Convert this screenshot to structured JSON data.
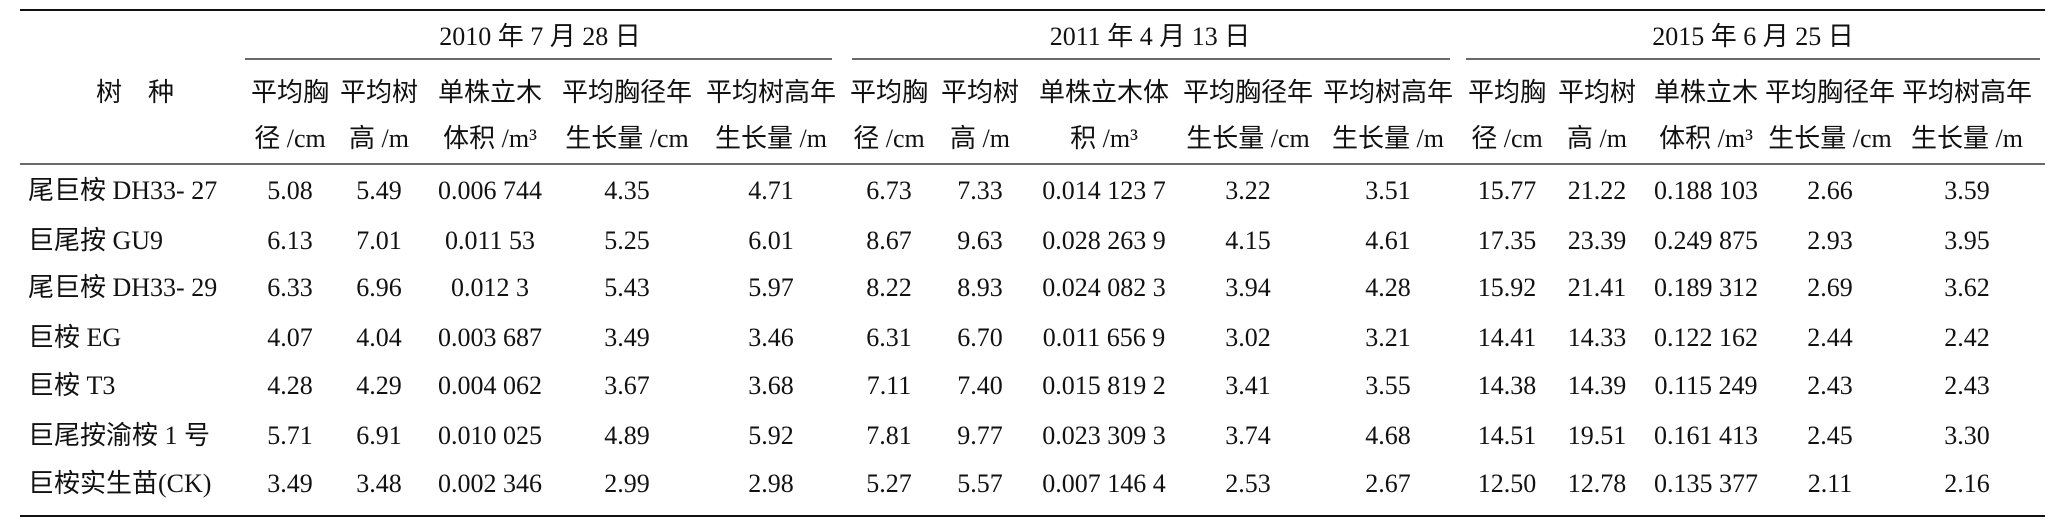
{
  "table": {
    "species_header": "树　种",
    "groups": [
      {
        "title": "2010 年 7 月 28 日",
        "columns": [
          [
            "平均胸",
            "径 /cm"
          ],
          [
            "平均树",
            "高 /m"
          ],
          [
            "单株立木",
            "体积 /m³"
          ],
          [
            "平均胸径年",
            "生长量 /cm"
          ],
          [
            "平均树高年",
            "生长量 /m"
          ]
        ]
      },
      {
        "title": "2011 年 4 月 13 日",
        "columns": [
          [
            "平均胸",
            "径 /cm"
          ],
          [
            "平均树",
            "高 /m"
          ],
          [
            "单株立木体",
            "积 /m³"
          ],
          [
            "平均胸径年",
            "生长量 /cm"
          ],
          [
            "平均树高年",
            "生长量 /m"
          ]
        ]
      },
      {
        "title": "2015 年 6 月 25 日",
        "columns": [
          [
            "平均胸",
            "径 /cm"
          ],
          [
            "平均树",
            "高 /m"
          ],
          [
            "单株立木",
            "体积 /m³"
          ],
          [
            "平均胸径年",
            "生长量 /cm"
          ],
          [
            "平均树高年",
            "生长量 /m"
          ]
        ]
      }
    ],
    "rows": [
      {
        "species": "尾巨桉 DH33- 27",
        "cells": [
          "5.08",
          "5.49",
          "0.006 744",
          "4.35",
          "4.71",
          "6.73",
          "7.33",
          "0.014 123 7",
          "3.22",
          "3.51",
          "15.77",
          "21.22",
          "0.188 103",
          "2.66",
          "3.59"
        ]
      },
      {
        "species": "巨尾按 GU9",
        "cells": [
          "6.13",
          "7.01",
          "0.011 53",
          "5.25",
          "6.01",
          "8.67",
          "9.63",
          "0.028 263 9",
          "4.15",
          "4.61",
          "17.35",
          "23.39",
          "0.249 875",
          "2.93",
          "3.95"
        ]
      },
      {
        "species": "尾巨桉 DH33- 29",
        "cells": [
          "6.33",
          "6.96",
          "0.012 3",
          "5.43",
          "5.97",
          "8.22",
          "8.93",
          "0.024 082 3",
          "3.94",
          "4.28",
          "15.92",
          "21.41",
          "0.189 312",
          "2.69",
          "3.62"
        ]
      },
      {
        "species": "巨桉 EG",
        "cells": [
          "4.07",
          "4.04",
          "0.003 687",
          "3.49",
          "3.46",
          "6.31",
          "6.70",
          "0.011 656 9",
          "3.02",
          "3.21",
          "14.41",
          "14.33",
          "0.122 162",
          "2.44",
          "2.42"
        ]
      },
      {
        "species": "巨桉 T3",
        "cells": [
          "4.28",
          "4.29",
          "0.004 062",
          "3.67",
          "3.68",
          "7.11",
          "7.40",
          "0.015 819 2",
          "3.41",
          "3.55",
          "14.38",
          "14.39",
          "0.115 249",
          "2.43",
          "2.43"
        ]
      },
      {
        "species": "巨尾按渝桉 1 号",
        "cells": [
          "5.71",
          "6.91",
          "0.010 025",
          "4.89",
          "5.92",
          "7.81",
          "9.77",
          "0.023 309 3",
          "3.74",
          "4.68",
          "14.51",
          "19.51",
          "0.161 413",
          "2.45",
          "3.30"
        ]
      },
      {
        "species": "巨桉实生苗(CK)",
        "cells": [
          "3.49",
          "3.48",
          "0.002 346",
          "2.99",
          "2.98",
          "5.27",
          "5.57",
          "0.007 146 4",
          "2.53",
          "2.67",
          "12.50",
          "12.78",
          "0.135 377",
          "2.11",
          "2.16"
        ]
      }
    ]
  }
}
